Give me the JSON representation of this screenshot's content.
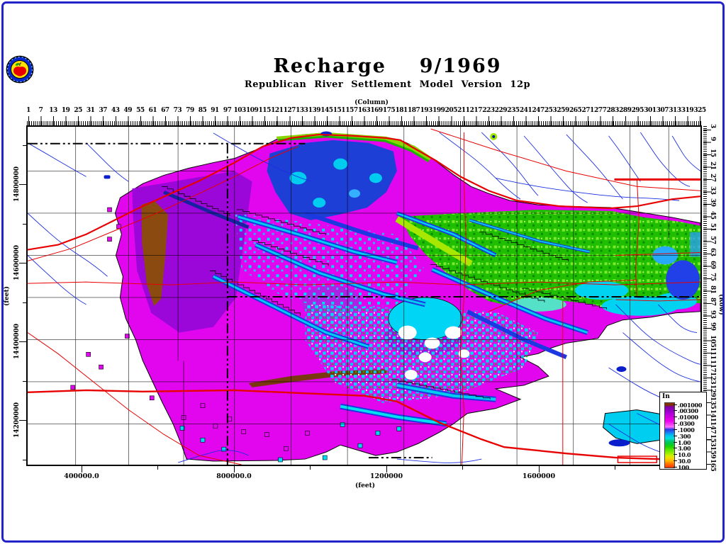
{
  "header": {
    "title": "Recharge  9/1969",
    "subtitle": "Republican River Settlement Model Version 12p"
  },
  "axes": {
    "column": {
      "label": "(Column)",
      "ticks": [
        1,
        7,
        13,
        19,
        25,
        31,
        37,
        43,
        49,
        55,
        61,
        67,
        73,
        79,
        85,
        91,
        97,
        103,
        109,
        115,
        121,
        127,
        133,
        139,
        145,
        151,
        157,
        163,
        169,
        175,
        181,
        187,
        193,
        199,
        205,
        211,
        217,
        223,
        229,
        235,
        241,
        247,
        253,
        259,
        265,
        271,
        277,
        283,
        289,
        295,
        301,
        307,
        313,
        319,
        325
      ]
    },
    "row": {
      "label": "(Row)",
      "ticks": [
        3,
        9,
        15,
        21,
        27,
        33,
        39,
        45,
        51,
        57,
        63,
        69,
        75,
        81,
        87,
        93,
        99,
        105,
        111,
        117,
        123,
        129,
        135,
        141,
        147,
        153,
        159,
        165
      ]
    },
    "left": {
      "label": "(feet)",
      "ticks": [
        "14800000",
        "14600000",
        "14400000",
        "14200000"
      ]
    },
    "bottom": {
      "label": "(feet)",
      "ticks": [
        "400000.0",
        "800000.0",
        "1200000",
        "1600000"
      ]
    }
  },
  "legend": {
    "title": "In",
    "entries": [
      ".001000",
      ".00300",
      ".01000",
      ".0300",
      ".1000",
      ".300",
      "1.00",
      "3.00",
      "10.0",
      "30.0",
      "100"
    ]
  },
  "map_colors": {
    "no_data_background": "#ffffff",
    "lowest_maroon": "#8a3800",
    "violet": "#9b07d8",
    "magenta_base": "#e106ee",
    "pink": "#ff70fa",
    "blue": "#1e3fd6",
    "light_blue": "#1880f0",
    "cyan": "#00d5f5",
    "green": "#1fbe00",
    "yellow_green": "#a8e800",
    "yellow": "#f0e000",
    "orange": "#ffb400",
    "red_high": "#ff3000",
    "highways": "#e80000",
    "streams": "#1b2fe0",
    "boundaries": "#000000"
  }
}
